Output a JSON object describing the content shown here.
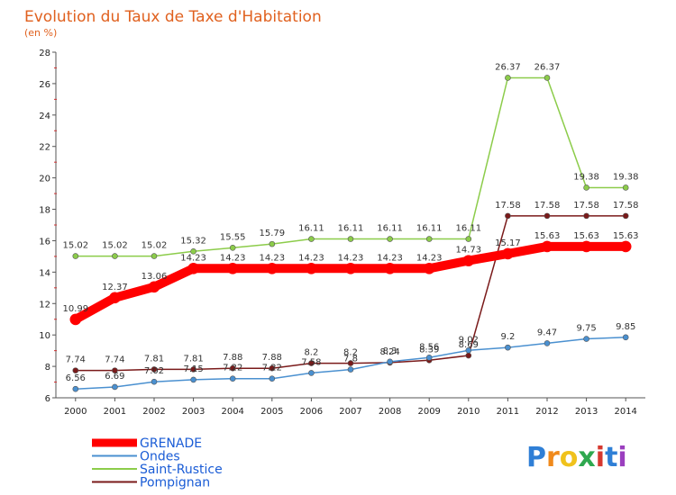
{
  "chart_data": {
    "type": "line",
    "title": "Evolution du Taux de Taxe d'Habitation",
    "subtitle": "(en %)",
    "x": [
      "2000",
      "2001",
      "2002",
      "2003",
      "2004",
      "2005",
      "2006",
      "2007",
      "2008",
      "2009",
      "2010",
      "2011",
      "2012",
      "2013",
      "2014"
    ],
    "ylim": [
      6,
      28
    ],
    "yticks": [
      6,
      8,
      10,
      12,
      14,
      16,
      18,
      20,
      22,
      24,
      26,
      28
    ],
    "grid": false,
    "legend_position": "bottom-left",
    "series": [
      {
        "name": "GRENADE",
        "color": "#ff0000",
        "values": [
          10.99,
          12.37,
          13.06,
          14.23,
          14.23,
          14.23,
          14.23,
          14.23,
          14.23,
          14.23,
          14.73,
          15.17,
          15.63,
          15.63,
          15.63
        ]
      },
      {
        "name": "Ondes",
        "color": "#4a90d0",
        "values": [
          6.56,
          6.69,
          7.02,
          7.15,
          7.22,
          7.22,
          7.58,
          7.8,
          8.3,
          8.56,
          9.02,
          9.2,
          9.47,
          9.75,
          9.85
        ]
      },
      {
        "name": "Saint-Rustice",
        "color": "#8ccc4a",
        "values": [
          15.02,
          15.02,
          15.02,
          15.32,
          15.55,
          15.79,
          16.11,
          16.11,
          16.11,
          16.11,
          16.11,
          26.37,
          26.37,
          19.38,
          19.38
        ]
      },
      {
        "name": "Pompignan",
        "color": "#7a1a1a",
        "values": [
          7.74,
          7.74,
          7.81,
          7.81,
          7.88,
          7.88,
          8.2,
          8.2,
          8.24,
          8.39,
          8.69,
          17.58,
          17.58,
          17.58,
          17.58
        ]
      }
    ],
    "value_labels": {
      "GRENADE": [
        "10.99",
        "12.37",
        "13.06",
        "14.23",
        "14.23",
        "14.23",
        "14.23",
        "14.23",
        "14.23",
        "14.23",
        "14.73",
        "15.17",
        "15.63",
        "15.63",
        "15.63"
      ],
      "Ondes": [
        "6.56",
        "6.69",
        "7.02",
        "7.15",
        "7.22",
        "7.22",
        "7.58",
        "7.8",
        "8.3",
        "8.56",
        "9.02",
        "9.2",
        "9.47",
        "9.75",
        "9.85"
      ],
      "Saint-Rustice": [
        "15.02",
        "15.02",
        "15.02",
        "15.32",
        "15.55",
        "15.79",
        "16.11",
        "16.11",
        "16.11",
        "16.11",
        "16.11",
        "26.37",
        "26.37",
        "19.38",
        "19.38"
      ],
      "Pompignan": [
        "7.74",
        "7.74",
        "7.81",
        "7.81",
        "7.88",
        "7.88",
        "8.2",
        "8.2",
        "8.24",
        "8.39",
        "8.69",
        "17.58",
        "17.58",
        "17.58",
        "17.58"
      ]
    }
  },
  "logo": {
    "letters": [
      "P",
      "r",
      "o",
      "x",
      "i",
      "t",
      "i"
    ],
    "colors": [
      "#2f7fd6",
      "#f08a1c",
      "#f0c21c",
      "#2fa84f",
      "#d6382f",
      "#2f7fd6",
      "#9b3fbf"
    ]
  }
}
